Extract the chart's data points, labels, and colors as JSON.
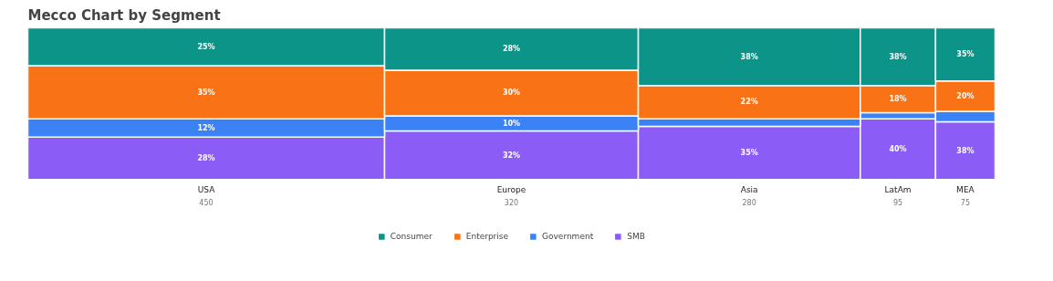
{
  "chart_data": {
    "type": "bar",
    "title": "Mecco Chart by Segment",
    "stacked": true,
    "categories": [
      "USA",
      "Europe",
      "Asia",
      "LatAm",
      "MEA"
    ],
    "annotations": [
      "450",
      "320",
      "280",
      "95",
      "75"
    ],
    "series": [
      {
        "name": "SMB",
        "color": "#8b5cf6",
        "values": [
          0.28,
          0.32,
          0.35,
          0.4,
          0.38
        ],
        "value_labels": [
          "28%",
          "32%",
          "35%",
          "40%",
          "38%"
        ]
      },
      {
        "name": "Government",
        "color": "#3b82f6",
        "values": [
          0.12,
          0.1,
          0.05,
          0.04,
          0.07
        ],
        "value_labels": [
          "12%",
          "10%",
          null,
          null,
          null
        ]
      },
      {
        "name": "Enterprise",
        "color": "#f97316",
        "values": [
          0.35,
          0.3,
          0.22,
          0.18,
          0.2
        ],
        "value_labels": [
          "35%",
          "30%",
          "22%",
          "18%",
          "20%"
        ]
      },
      {
        "name": "Consumer",
        "color": "#0d9488",
        "values": [
          0.25,
          0.28,
          0.38,
          0.38,
          0.35
        ],
        "value_labels": [
          "25%",
          "28%",
          "38%",
          "38%",
          "35%"
        ]
      }
    ],
    "ylim": [
      0,
      1
    ],
    "legend": "bottom",
    "tick_labels": "x"
  }
}
